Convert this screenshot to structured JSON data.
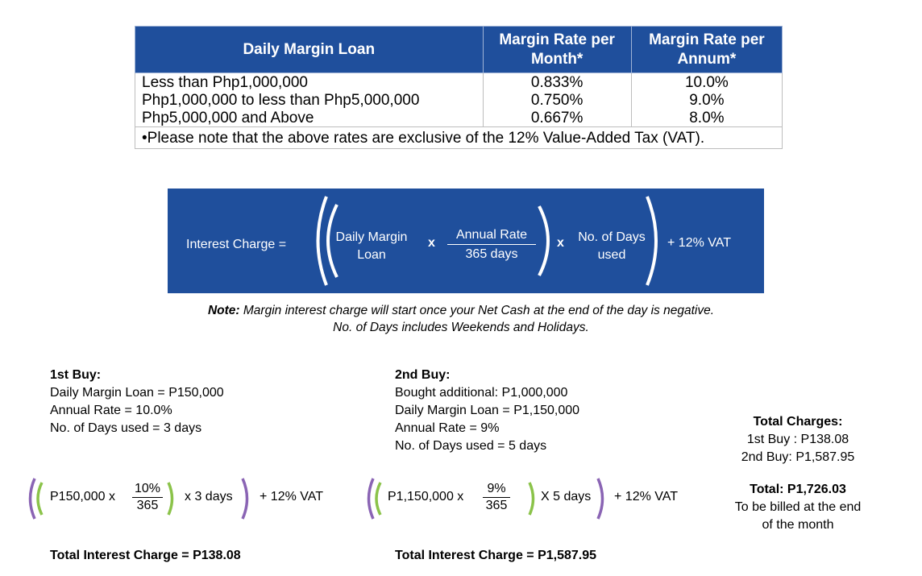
{
  "table": {
    "headers": [
      "Daily Margin Loan",
      "Margin Rate per Month*",
      "Margin Rate per Annum*"
    ],
    "header_lines": [
      [
        "Daily Margin Loan"
      ],
      [
        "Margin Rate per",
        "Month*"
      ],
      [
        "Margin Rate per",
        "Annum*"
      ]
    ],
    "rows": [
      [
        "Less than Php1,000,000",
        "0.833%",
        "10.0%"
      ],
      [
        "Php1,000,000 to less than Php5,000,000",
        "0.750%",
        "9.0%"
      ],
      [
        "Php5,000,000 and Above",
        "0.667%",
        "8.0%"
      ]
    ],
    "note": "•Please note that the above rates are exclusive of the 12% Value-Added Tax (VAT).",
    "header_color": "#1f4f9c"
  },
  "formula": {
    "label": "Interest Charge =",
    "loan_line1": "Daily Margin",
    "loan_line2": "Loan",
    "times1": "x",
    "rate_num": "Annual Rate",
    "rate_den": "365 days",
    "times2": "x",
    "days_line1": "No. of Days",
    "days_line2": "used",
    "vat": "+  12% VAT"
  },
  "notes": {
    "line1_bold": "Note:",
    "line1": " Margin interest charge will start once your Net Cash at the end of the day is negative.",
    "line2": "No. of Days includes Weekends and Holidays."
  },
  "buy1": {
    "title": "1st Buy:",
    "lines": [
      "Daily Margin Loan = P150,000",
      "Annual Rate =  10.0%",
      "No. of Days used = 3 days"
    ],
    "eq_amount": "P150,000 x",
    "eq_num": "10%",
    "eq_den": "365",
    "eq_days": "x 3 days",
    "eq_vat": "+ 12% VAT",
    "total": "Total Interest Charge = P138.08"
  },
  "buy2": {
    "title": "2nd Buy:",
    "lines": [
      "Bought additional: P1,000,000",
      "Daily Margin Loan = P1,150,000",
      "Annual Rate =  9%",
      "No. of Days used = 5 days"
    ],
    "eq_amount": "P1,150,000 x",
    "eq_num": "9%",
    "eq_den": "365",
    "eq_days": "X 5 days",
    "eq_vat": "+ 12% VAT",
    "total": "Total Interest Charge = P1,587.95"
  },
  "summary": {
    "title": "Total Charges:",
    "line1": "1st Buy : P138.08",
    "line2": "2nd Buy: P1,587.95",
    "total": "Total: P1,726.03",
    "billed1": "To be billed at the end",
    "billed2": "of the month"
  },
  "colors": {
    "bracket_inner": "#8bc34a",
    "bracket_outer": "#8a64b4",
    "banner": "#1f4f9c"
  }
}
